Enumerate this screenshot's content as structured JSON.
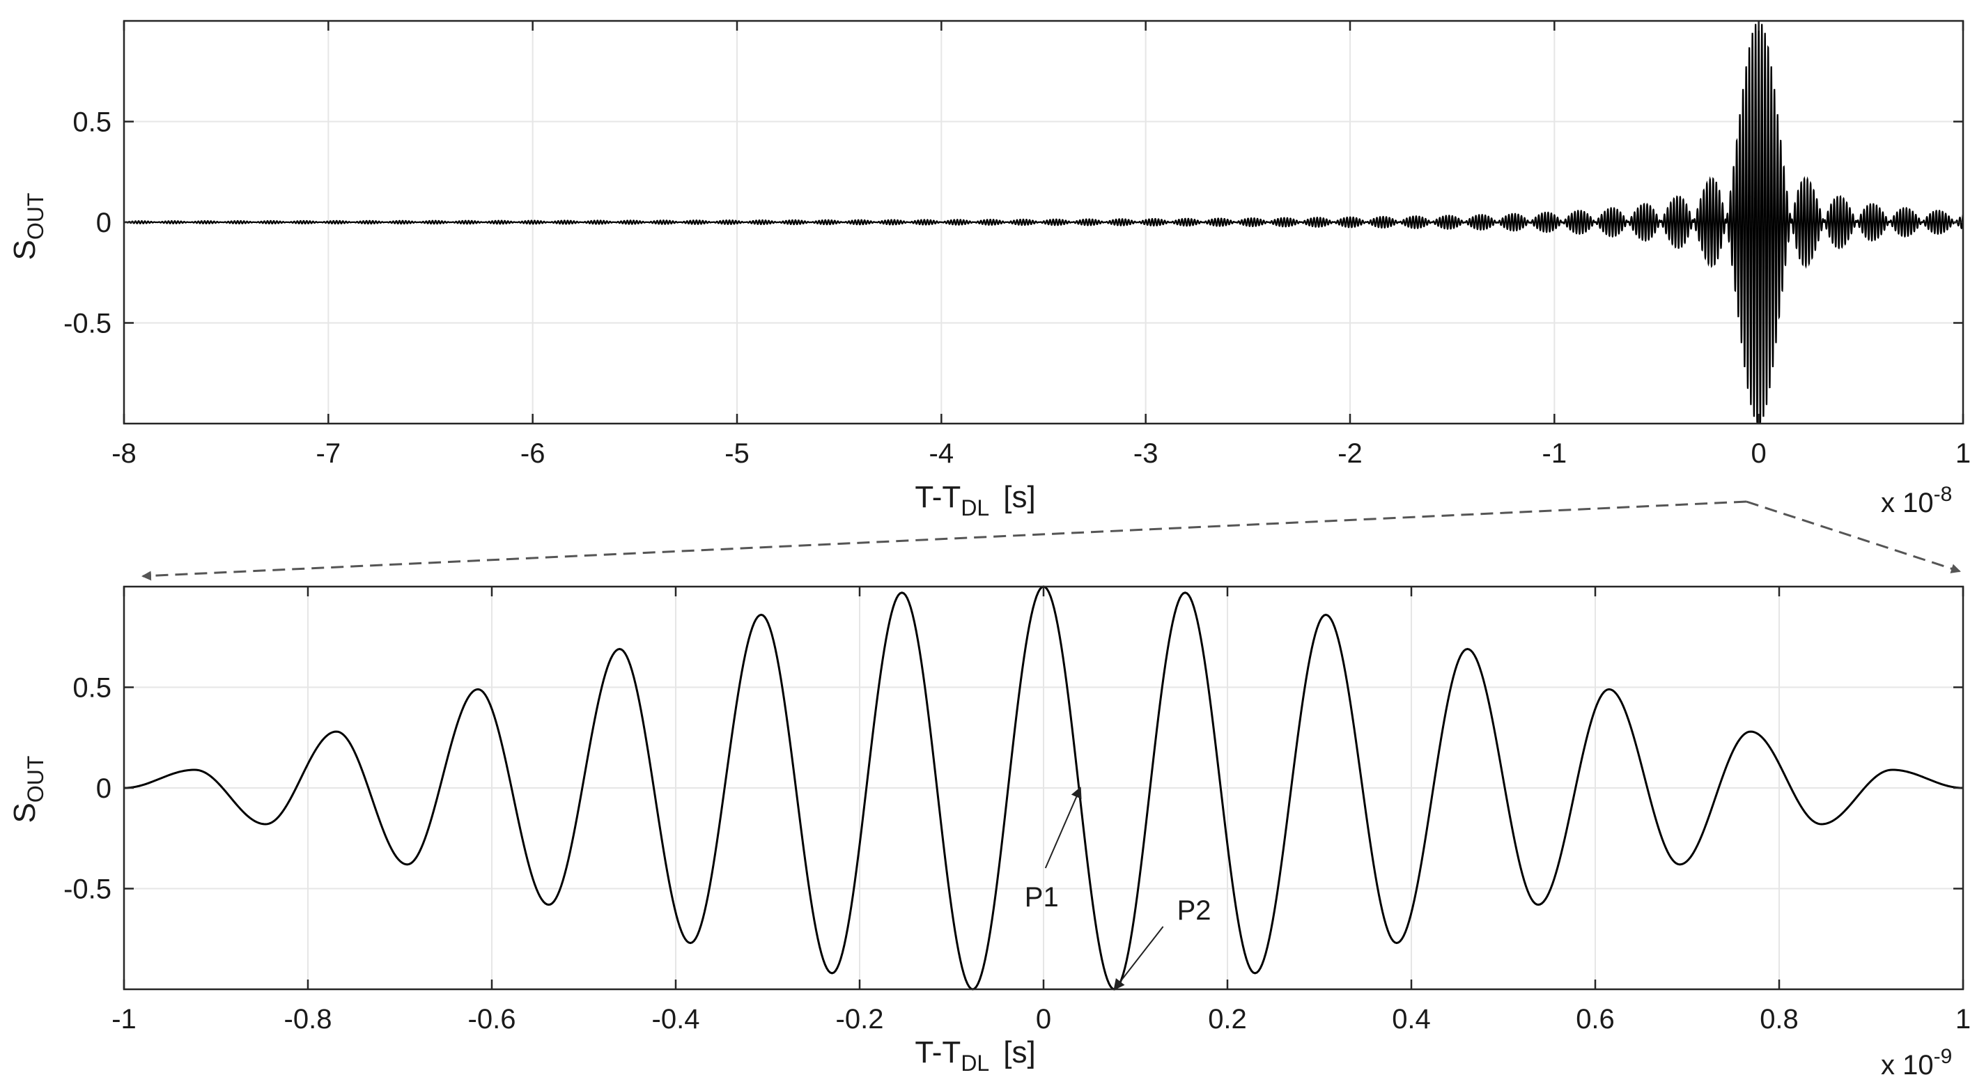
{
  "figure": {
    "background": "#ffffff",
    "axis_color": "#262626",
    "grid_color": "#e6e6e6",
    "line_color": "#000000",
    "zoom_arrow_color": "#555555"
  },
  "chart_data": [
    {
      "type": "line",
      "title": "",
      "xlabel": {
        "main": "T-T",
        "sub": "DL",
        "unit": "[s]"
      },
      "ylabel": {
        "main": "S",
        "sub": "OUT"
      },
      "x_multiplier": {
        "base": "x 10",
        "exp": "-8"
      },
      "xlim": [
        -8,
        1
      ],
      "ylim": [
        -1,
        1
      ],
      "xticks": [
        -8,
        -7,
        -6,
        -5,
        -4,
        -3,
        -2,
        -1,
        0,
        1
      ],
      "xtick_labels": [
        "-8",
        "-7",
        "-6",
        "-5",
        "-4",
        "-3",
        "-2",
        "-1",
        "0",
        "1"
      ],
      "yticks": [
        0.5,
        0,
        -0.5
      ],
      "ytick_labels": [
        "0.5",
        "0",
        "-0.5"
      ],
      "grid": true,
      "series": [
        {
          "description_of_shape": "dense oscillation with peak amplitude ~1 at 0, decaying sidelobes",
          "carrier_period": 0.01538,
          "lobe_period": 0.16,
          "center": 0,
          "peak_amplitude": 1.0
        }
      ]
    },
    {
      "type": "line",
      "title": "",
      "xlabel": {
        "main": "T-T",
        "sub": "DL",
        "unit": "[s]"
      },
      "ylabel": {
        "main": "S",
        "sub": "OUT"
      },
      "x_multiplier": {
        "base": "x 10",
        "exp": "-9"
      },
      "xlim": [
        -1,
        1
      ],
      "ylim": [
        -1,
        1
      ],
      "xticks": [
        -1,
        -0.8,
        -0.6,
        -0.4,
        -0.2,
        0,
        0.2,
        0.4,
        0.6,
        0.8,
        1
      ],
      "xtick_labels": [
        "-1",
        "-0.8",
        "-0.6",
        "-0.4",
        "-0.2",
        "0",
        "0.2",
        "0.4",
        "0.6",
        "0.8",
        "1"
      ],
      "yticks": [
        0.5,
        0,
        -0.5
      ],
      "ytick_labels": [
        "0.5",
        "0",
        "-0.5"
      ],
      "grid": true,
      "series": [
        {
          "carrier_period": 0.1538,
          "center": 0,
          "peak_amplitude": 1.0,
          "sample_peaks": [
            {
              "x": -0.923,
              "y": 0.09
            },
            {
              "x": -0.846,
              "y": -0.18
            },
            {
              "x": -0.769,
              "y": 0.28
            },
            {
              "x": -0.692,
              "y": -0.38
            },
            {
              "x": -0.615,
              "y": 0.49
            },
            {
              "x": -0.538,
              "y": -0.58
            },
            {
              "x": -0.461,
              "y": 0.69
            },
            {
              "x": -0.384,
              "y": -0.77
            },
            {
              "x": -0.307,
              "y": 0.86
            },
            {
              "x": -0.23,
              "y": -0.92
            },
            {
              "x": -0.154,
              "y": 0.97
            },
            {
              "x": -0.077,
              "y": -1.0
            },
            {
              "x": 0.0,
              "y": 1.0
            },
            {
              "x": 0.077,
              "y": -1.0
            },
            {
              "x": 0.154,
              "y": 0.97
            },
            {
              "x": 0.23,
              "y": -0.92
            },
            {
              "x": 0.307,
              "y": 0.86
            },
            {
              "x": 0.384,
              "y": -0.77
            },
            {
              "x": 0.461,
              "y": 0.69
            },
            {
              "x": 0.538,
              "y": -0.58
            },
            {
              "x": 0.615,
              "y": 0.49
            },
            {
              "x": 0.692,
              "y": -0.38
            },
            {
              "x": 0.769,
              "y": 0.28
            },
            {
              "x": 0.846,
              "y": -0.18
            },
            {
              "x": 0.923,
              "y": 0.09
            }
          ]
        }
      ],
      "annotations": [
        {
          "text": "P1",
          "target": {
            "x": 0.04,
            "y": 0.0
          }
        },
        {
          "text": "P2",
          "target": {
            "x": 0.077,
            "y": -1.0
          }
        }
      ]
    }
  ]
}
